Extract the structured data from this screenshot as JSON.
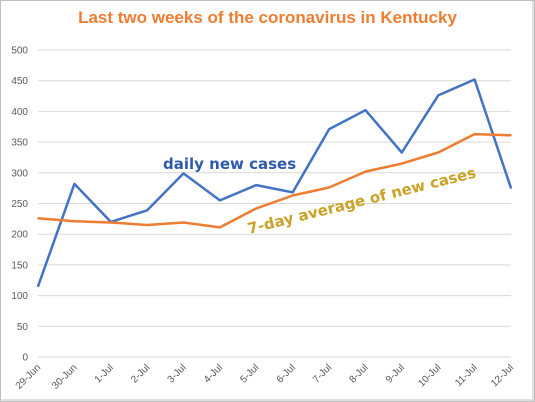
{
  "chart_data": {
    "type": "line",
    "title": "Last two weeks of the coronavirus in Kentucky",
    "xlabel": "",
    "ylabel": "",
    "categories": [
      "29-Jun",
      "30-Jun",
      "1-Jul",
      "2-Jul",
      "3-Jul",
      "4-Jul",
      "5-Jul",
      "6-Jul",
      "7-Jul",
      "8-Jul",
      "9-Jul",
      "10-Jul",
      "11-Jul",
      "12-Jul"
    ],
    "ylim": [
      0,
      500
    ],
    "yticks": [
      0,
      50,
      100,
      150,
      200,
      250,
      300,
      350,
      400,
      450,
      500
    ],
    "grid": true,
    "legend": "none",
    "series": [
      {
        "name": "daily new cases",
        "color": "#4472C4",
        "values": [
          115,
          282,
          220,
          239,
          299,
          255,
          280,
          268,
          371,
          402,
          333,
          426,
          452,
          275
        ]
      },
      {
        "name": "7-day average of new cases",
        "color": "#ED7D31",
        "values": [
          226,
          221,
          219,
          215,
          219,
          211,
          242,
          263,
          276,
          302,
          315,
          333,
          363,
          361
        ]
      }
    ],
    "annotations": [
      {
        "text": "daily new cases",
        "color": "#2E5AAC"
      },
      {
        "text": "7-day average of new cases",
        "color": "#C9A227"
      }
    ]
  }
}
